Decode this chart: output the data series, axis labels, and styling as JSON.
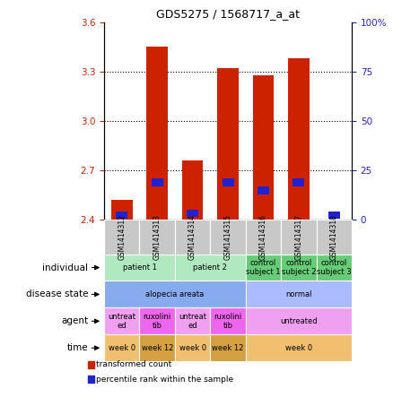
{
  "title": "GDS5275 / 1568717_a_at",
  "samples": [
    "GSM1414312",
    "GSM1414313",
    "GSM1414314",
    "GSM1414315",
    "GSM1414316",
    "GSM1414317",
    "GSM1414318"
  ],
  "bar_values": [
    2.52,
    3.45,
    2.76,
    3.32,
    3.28,
    3.38,
    2.4
  ],
  "blue_values": [
    2.425,
    2.625,
    2.435,
    2.625,
    2.575,
    2.625,
    2.425
  ],
  "ylim": [
    2.4,
    3.6
  ],
  "yticks_left": [
    2.4,
    2.7,
    3.0,
    3.3,
    3.6
  ],
  "yticks_right": [
    0,
    25,
    50,
    75,
    100
  ],
  "ytick_right_labels": [
    "0",
    "25",
    "50",
    "75",
    "100%"
  ],
  "bar_color": "#cc2200",
  "blue_color": "#2222cc",
  "bar_bottom": 2.4,
  "annotation_rows": [
    {
      "label": "individual",
      "cells": [
        {
          "text": "patient 1",
          "span": 2,
          "color": "#b0e8c0"
        },
        {
          "text": "patient 2",
          "span": 2,
          "color": "#b0e8c0"
        },
        {
          "text": "control\nsubject 1",
          "span": 1,
          "color": "#66cc77"
        },
        {
          "text": "control\nsubject 2",
          "span": 1,
          "color": "#66cc77"
        },
        {
          "text": "control\nsubject 3",
          "span": 1,
          "color": "#66cc77"
        }
      ]
    },
    {
      "label": "disease state",
      "cells": [
        {
          "text": "alopecia areata",
          "span": 4,
          "color": "#88aaee"
        },
        {
          "text": "normal",
          "span": 3,
          "color": "#aabbff"
        }
      ]
    },
    {
      "label": "agent",
      "cells": [
        {
          "text": "untreat\ned",
          "span": 1,
          "color": "#f0a0f0"
        },
        {
          "text": "ruxolini\ntib",
          "span": 1,
          "color": "#ee66ee"
        },
        {
          "text": "untreat\ned",
          "span": 1,
          "color": "#f0a0f0"
        },
        {
          "text": "ruxolini\ntib",
          "span": 1,
          "color": "#ee66ee"
        },
        {
          "text": "untreated",
          "span": 3,
          "color": "#f0a0f0"
        }
      ]
    },
    {
      "label": "time",
      "cells": [
        {
          "text": "week 0",
          "span": 1,
          "color": "#f0c070"
        },
        {
          "text": "week 12",
          "span": 1,
          "color": "#d4a040"
        },
        {
          "text": "week 0",
          "span": 1,
          "color": "#f0c070"
        },
        {
          "text": "week 12",
          "span": 1,
          "color": "#d4a040"
        },
        {
          "text": "week 0",
          "span": 3,
          "color": "#f0c070"
        }
      ]
    }
  ],
  "tick_color_left": "#cc2200",
  "tick_color_right": "#2222cc",
  "sample_bg_color": "#c8c8c8",
  "fig_bg": "#ffffff"
}
